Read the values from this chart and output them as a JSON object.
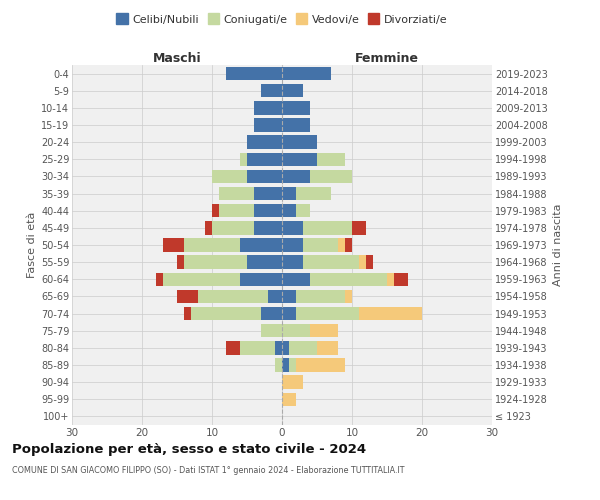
{
  "age_groups": [
    "100+",
    "95-99",
    "90-94",
    "85-89",
    "80-84",
    "75-79",
    "70-74",
    "65-69",
    "60-64",
    "55-59",
    "50-54",
    "45-49",
    "40-44",
    "35-39",
    "30-34",
    "25-29",
    "20-24",
    "15-19",
    "10-14",
    "5-9",
    "0-4"
  ],
  "birth_years": [
    "≤ 1923",
    "1924-1928",
    "1929-1933",
    "1934-1938",
    "1939-1943",
    "1944-1948",
    "1949-1953",
    "1954-1958",
    "1959-1963",
    "1964-1968",
    "1969-1973",
    "1974-1978",
    "1979-1983",
    "1984-1988",
    "1989-1993",
    "1994-1998",
    "1999-2003",
    "2004-2008",
    "2009-2013",
    "2014-2018",
    "2019-2023"
  ],
  "colors": {
    "celibi": "#4472a8",
    "coniugati": "#c5d9a0",
    "vedovi": "#f5c97a",
    "divorziati": "#c0392b"
  },
  "maschi": {
    "celibi": [
      0,
      0,
      0,
      0,
      1,
      0,
      3,
      2,
      6,
      5,
      6,
      4,
      4,
      4,
      5,
      5,
      5,
      4,
      4,
      3,
      8
    ],
    "coniugati": [
      0,
      0,
      0,
      1,
      5,
      3,
      10,
      10,
      11,
      9,
      8,
      6,
      5,
      5,
      5,
      1,
      0,
      0,
      0,
      0,
      0
    ],
    "vedovi": [
      0,
      0,
      0,
      0,
      0,
      0,
      0,
      0,
      0,
      0,
      0,
      0,
      0,
      0,
      0,
      0,
      0,
      0,
      0,
      0,
      0
    ],
    "divorziati": [
      0,
      0,
      0,
      0,
      2,
      0,
      1,
      3,
      1,
      1,
      3,
      1,
      1,
      0,
      0,
      0,
      0,
      0,
      0,
      0,
      0
    ]
  },
  "femmine": {
    "celibi": [
      0,
      0,
      0,
      1,
      1,
      0,
      2,
      2,
      4,
      3,
      3,
      3,
      2,
      2,
      4,
      5,
      5,
      4,
      4,
      3,
      7
    ],
    "coniugati": [
      0,
      0,
      0,
      1,
      4,
      4,
      9,
      7,
      11,
      8,
      5,
      7,
      2,
      5,
      6,
      4,
      0,
      0,
      0,
      0,
      0
    ],
    "vedovi": [
      0,
      2,
      3,
      7,
      3,
      4,
      9,
      1,
      1,
      1,
      1,
      0,
      0,
      0,
      0,
      0,
      0,
      0,
      0,
      0,
      0
    ],
    "divorziati": [
      0,
      0,
      0,
      0,
      0,
      0,
      0,
      0,
      2,
      1,
      1,
      2,
      0,
      0,
      0,
      0,
      0,
      0,
      0,
      0,
      0
    ]
  },
  "xlim": 30,
  "title": "Popolazione per età, sesso e stato civile - 2024",
  "subtitle": "COMUNE DI SAN GIACOMO FILIPPO (SO) - Dati ISTAT 1° gennaio 2024 - Elaborazione TUTTITALIA.IT",
  "ylabel_left": "Fasce di età",
  "ylabel_right": "Anni di nascita",
  "label_maschi": "Maschi",
  "label_femmine": "Femmine",
  "legend_labels": [
    "Celibi/Nubili",
    "Coniugati/e",
    "Vedovi/e",
    "Divorziati/e"
  ],
  "bg_color": "#f0f0f0"
}
